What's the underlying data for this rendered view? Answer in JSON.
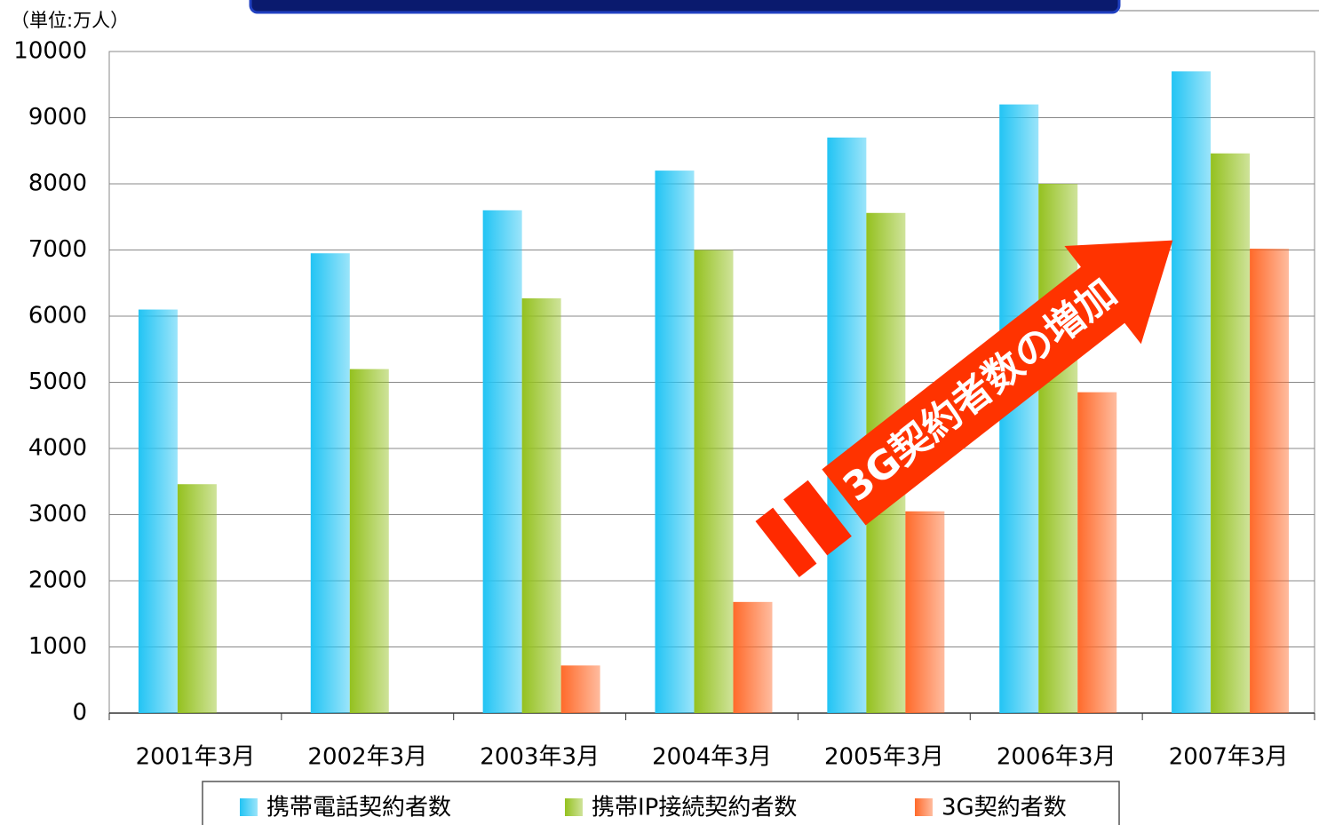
{
  "chart_data": {
    "type": "bar",
    "unit_label": "（単位:万人）",
    "annotation": "3G契約者数の増加",
    "categories": [
      "2001年3月",
      "2002年3月",
      "2003年3月",
      "2004年3月",
      "2005年3月",
      "2006年3月",
      "2007年3月"
    ],
    "series": [
      {
        "name": "携帯電話契約者数",
        "color": "#22c4f4",
        "values": [
          6100,
          6950,
          7600,
          8200,
          8700,
          9200,
          9700
        ]
      },
      {
        "name": "携帯IP接続契約者数",
        "color": "#94c11f",
        "values": [
          3460,
          5200,
          6270,
          7000,
          7560,
          8000,
          8460
        ]
      },
      {
        "name": "3G契約者数",
        "color": "#ff6a2a",
        "values": [
          null,
          null,
          720,
          1680,
          3050,
          4850,
          7020
        ]
      }
    ],
    "ylim": [
      0,
      10000
    ],
    "yticks": [
      0,
      1000,
      2000,
      3000,
      4000,
      5000,
      6000,
      7000,
      8000,
      9000,
      10000
    ],
    "grid": true
  }
}
